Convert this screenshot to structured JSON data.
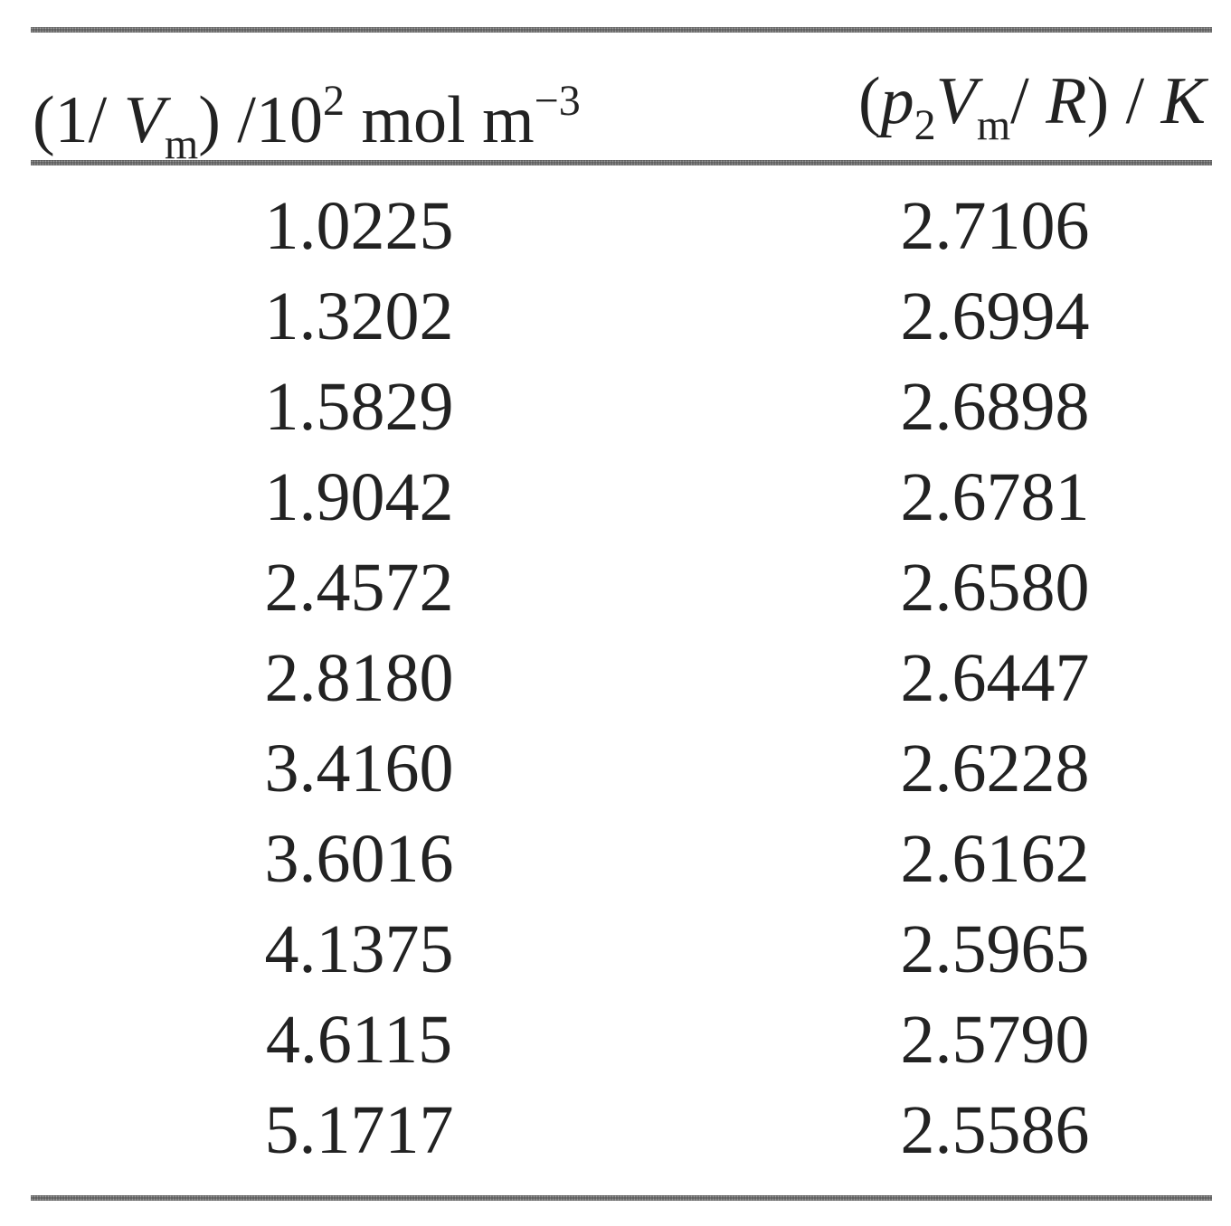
{
  "table": {
    "header": [
      [
        "(1/ ",
        "V",
        "m",
        ") /10",
        "2",
        " mol m",
        "−3"
      ],
      [
        "(",
        "p",
        "2",
        "V",
        "m",
        "/ ",
        "R",
        ") / ",
        "K"
      ]
    ],
    "rows": [
      [
        "1.0225",
        "2.7106"
      ],
      [
        "1.3202",
        "2.6994"
      ],
      [
        "1.5829",
        "2.6898"
      ],
      [
        "1.9042",
        "2.6781"
      ],
      [
        "2.4572",
        "2.6580"
      ],
      [
        "2.8180",
        "2.6447"
      ],
      [
        "3.4160",
        "2.6228"
      ],
      [
        "3.6016",
        "2.6162"
      ],
      [
        "4.1375",
        "2.5965"
      ],
      [
        "4.6115",
        "2.5790"
      ],
      [
        "5.1717",
        "2.5586"
      ]
    ]
  }
}
